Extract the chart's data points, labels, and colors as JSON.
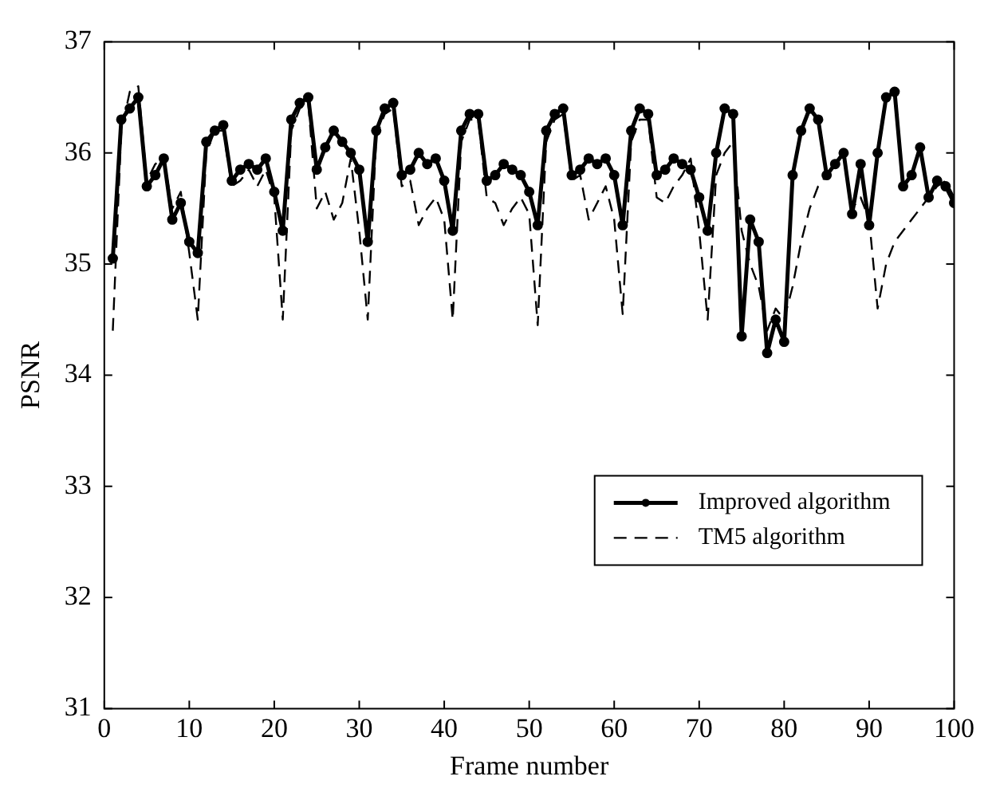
{
  "chart_data": {
    "type": "line",
    "xlabel": "Frame number",
    "ylabel": "PSNR",
    "x": [
      1,
      2,
      3,
      4,
      5,
      6,
      7,
      8,
      9,
      10,
      11,
      12,
      13,
      14,
      15,
      16,
      17,
      18,
      19,
      20,
      21,
      22,
      23,
      24,
      25,
      26,
      27,
      28,
      29,
      30,
      31,
      32,
      33,
      34,
      35,
      36,
      37,
      38,
      39,
      40,
      41,
      42,
      43,
      44,
      45,
      46,
      47,
      48,
      49,
      50,
      51,
      52,
      53,
      54,
      55,
      56,
      57,
      58,
      59,
      60,
      61,
      62,
      63,
      64,
      65,
      66,
      67,
      68,
      69,
      70,
      71,
      72,
      73,
      74,
      75,
      76,
      77,
      78,
      79,
      80,
      81,
      82,
      83,
      84,
      85,
      86,
      87,
      88,
      89,
      90,
      91,
      92,
      93,
      94,
      95,
      96,
      97,
      98,
      99,
      100
    ],
    "series": [
      {
        "name": "Improved algorithm",
        "color": "#000000",
        "marker": "circle",
        "line_style": "solid",
        "values": [
          35.05,
          36.3,
          36.4,
          36.5,
          35.7,
          35.8,
          35.95,
          35.4,
          35.55,
          35.2,
          35.1,
          36.1,
          36.2,
          36.25,
          35.75,
          35.85,
          35.9,
          35.85,
          35.95,
          35.65,
          35.3,
          36.3,
          36.45,
          36.5,
          35.85,
          36.05,
          36.2,
          36.1,
          36.0,
          35.85,
          35.2,
          36.2,
          36.4,
          36.45,
          35.8,
          35.85,
          36.0,
          35.9,
          35.95,
          35.75,
          35.3,
          36.2,
          36.35,
          36.35,
          35.75,
          35.8,
          35.9,
          35.85,
          35.8,
          35.65,
          35.35,
          36.2,
          36.35,
          36.4,
          35.8,
          35.85,
          35.95,
          35.9,
          35.95,
          35.8,
          35.35,
          36.2,
          36.4,
          36.35,
          35.8,
          35.85,
          35.95,
          35.9,
          35.85,
          35.6,
          35.3,
          36.0,
          36.4,
          36.35,
          34.35,
          35.4,
          35.2,
          34.2,
          34.5,
          34.3,
          35.8,
          36.2,
          36.4,
          36.3,
          35.8,
          35.9,
          36.0,
          35.45,
          35.9,
          35.35,
          36.0,
          36.5,
          36.55,
          35.7,
          35.8,
          36.05,
          35.6,
          35.75,
          35.7,
          35.55
        ]
      },
      {
        "name": "TM5 algorithm",
        "color": "#000000",
        "marker": "none",
        "line_style": "dashed",
        "values": [
          34.4,
          36.2,
          36.55,
          36.6,
          35.75,
          35.9,
          35.95,
          35.5,
          35.65,
          35.1,
          34.5,
          36.0,
          36.2,
          36.2,
          35.7,
          35.75,
          35.85,
          35.7,
          35.85,
          35.6,
          34.5,
          36.2,
          36.4,
          36.45,
          35.5,
          35.65,
          35.4,
          35.55,
          35.95,
          35.3,
          34.5,
          36.15,
          36.35,
          36.4,
          35.7,
          35.75,
          35.35,
          35.5,
          35.6,
          35.4,
          34.5,
          36.1,
          36.3,
          36.3,
          35.6,
          35.55,
          35.35,
          35.5,
          35.6,
          35.45,
          34.45,
          36.1,
          36.3,
          36.35,
          35.75,
          35.8,
          35.4,
          35.55,
          35.7,
          35.4,
          34.55,
          36.1,
          36.3,
          36.3,
          35.6,
          35.55,
          35.7,
          35.8,
          35.95,
          35.3,
          34.5,
          35.8,
          36.0,
          36.1,
          35.3,
          35.0,
          34.8,
          34.4,
          34.6,
          34.5,
          34.8,
          35.2,
          35.5,
          35.7,
          35.8,
          35.9,
          36.0,
          35.5,
          35.6,
          35.4,
          34.6,
          35.0,
          35.2,
          35.3,
          35.4,
          35.5,
          35.6,
          35.7,
          35.75,
          35.6
        ]
      }
    ],
    "xlim": [
      0,
      100
    ],
    "xticks": [
      0,
      10,
      20,
      30,
      40,
      50,
      60,
      70,
      80,
      90,
      100
    ],
    "ylim": [
      31,
      37
    ],
    "yticks": [
      31,
      32,
      33,
      34,
      35,
      36,
      37
    ],
    "grid": false,
    "legend": "bottom right"
  }
}
